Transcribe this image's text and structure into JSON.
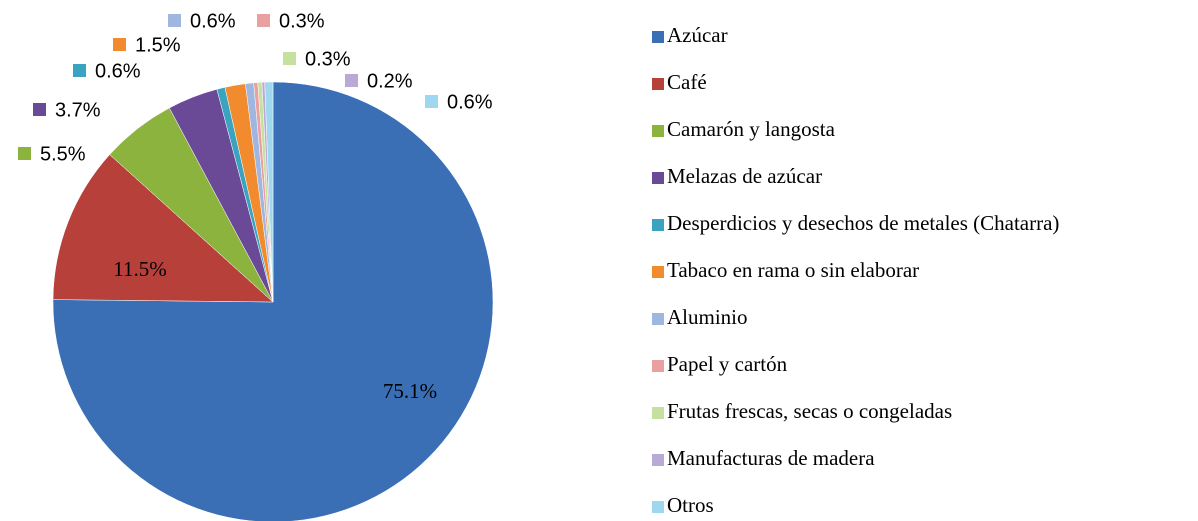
{
  "chart_data": {
    "type": "pie",
    "categories": [
      "Azúcar",
      "Café",
      "Camarón y langosta",
      "Melazas de azúcar",
      "Desperdicios y desechos de metales (Chatarra)",
      "Tabaco en rama o sin elaborar",
      "Aluminio",
      "Papel y cartón",
      "Frutas frescas, secas o congeladas",
      "Manufacturas de madera",
      "Otros"
    ],
    "values": [
      75.1,
      11.5,
      5.5,
      3.7,
      0.6,
      1.5,
      0.6,
      0.3,
      0.3,
      0.2,
      0.6
    ],
    "value_labels": [
      "75.1%",
      "11.5%",
      "5.5%",
      "3.7%",
      "0.6%",
      "1.5%",
      "0.6%",
      "0.3%",
      "0.3%",
      "0.2%",
      "0.6%"
    ],
    "colors": [
      "#3a6fb5",
      "#b8403a",
      "#8db33f",
      "#6a4a97",
      "#3aa3bf",
      "#f28a2e",
      "#9fb6e0",
      "#e8a0a0",
      "#c6e0a0",
      "#b9a9d6",
      "#9fd8ee"
    ]
  }
}
